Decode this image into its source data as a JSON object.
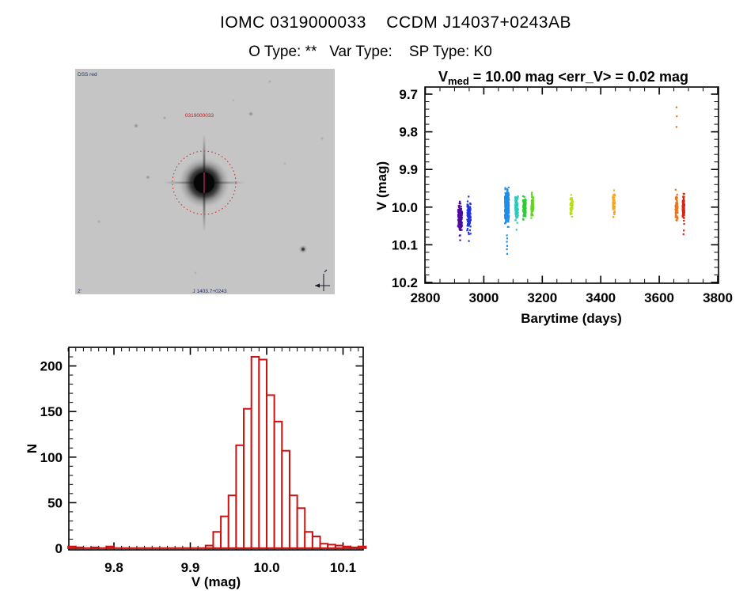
{
  "page": {
    "title": "IOMC 0319000033    CCDM J14037+0243AB",
    "subtitle": "O Type: **   Var Type:    SP Type: K0"
  },
  "finder": {
    "corner_label": "DSS red",
    "source_label": "0319000033",
    "bottom_label": "J 1403.7+0243",
    "scale_label": "2'",
    "circle_color": "#cc3333"
  },
  "chart_data": [
    {
      "id": "lightcurve",
      "type": "scatter",
      "title": {
        "text_main": "V",
        "text_sub": "med",
        "text_rest": " = 10.00 mag <err_V> = 0.02 mag"
      },
      "xlabel": "Barytime (days)",
      "ylabel": "V (mag)",
      "xlim": [
        2800,
        3800
      ],
      "ylim": [
        10.2,
        9.7
      ],
      "y_axis_inverted": true,
      "grid": false,
      "xticks": [
        "2800",
        "3000",
        "3200",
        "3400",
        "3600",
        "3800"
      ],
      "yticks": [
        "9.7",
        "9.8",
        "9.9",
        "10.0",
        "10.1",
        "10.2"
      ],
      "x_minor_step": 50,
      "y_minor_step": 0.02,
      "point_shape": "small-square",
      "clusters": [
        {
          "t": 2919,
          "dt": 7,
          "v": 10.028,
          "sv": 0.03,
          "vmin": 9.976,
          "vmax": 10.082,
          "n": 130,
          "color": "#4A0C9E",
          "extra": [
            [
              2919,
              10.088
            ]
          ]
        },
        {
          "t": 2949,
          "dt": 6,
          "v": 10.025,
          "sv": 0.032,
          "vmin": 9.972,
          "vmax": 10.085,
          "n": 100,
          "color": "#2233D8",
          "extra": [
            [
              2949,
              10.09
            ],
            [
              2948,
              9.972
            ]
          ]
        },
        {
          "t": 3079,
          "dt": 7,
          "v": 10.0,
          "sv": 0.034,
          "vmin": 9.932,
          "vmax": 10.068,
          "n": 240,
          "color": "#1E8EE8",
          "extra": [
            [
              3079,
              10.075
            ],
            [
              3080,
              10.083
            ],
            [
              3079,
              10.092
            ],
            [
              3080,
              10.103
            ],
            [
              3079,
              10.112
            ],
            [
              3080,
              10.124
            ]
          ]
        },
        {
          "t": 3112,
          "dt": 5,
          "v": 10.003,
          "sv": 0.026,
          "vmin": 9.956,
          "vmax": 10.052,
          "n": 70,
          "color": "#2BC9B8",
          "extra": [
            [
              3112,
              10.06
            ]
          ]
        },
        {
          "t": 3139,
          "dt": 5,
          "v": 9.999,
          "sv": 0.025,
          "vmin": 9.952,
          "vmax": 10.046,
          "n": 90,
          "color": "#2ECC35",
          "extra": []
        },
        {
          "t": 3166,
          "dt": 4,
          "v": 10.0,
          "sv": 0.03,
          "vmin": 9.944,
          "vmax": 10.058,
          "n": 55,
          "color": "#63D41F",
          "extra": []
        },
        {
          "t": 3300,
          "dt": 4,
          "v": 10.0,
          "sv": 0.026,
          "vmin": 9.954,
          "vmax": 10.048,
          "n": 50,
          "color": "#B8DC1A",
          "extra": []
        },
        {
          "t": 3445,
          "dt": 4,
          "v": 9.995,
          "sv": 0.03,
          "vmin": 9.94,
          "vmax": 10.052,
          "n": 42,
          "color": "#F0A818",
          "extra": []
        },
        {
          "t": 3659,
          "dt": 4,
          "v": 10.0,
          "sv": 0.03,
          "vmin": 9.94,
          "vmax": 10.056,
          "n": 60,
          "color": "#EE7518",
          "extra": [
            [
              3659,
              9.735
            ],
            [
              3660,
              9.759
            ],
            [
              3659,
              9.787
            ]
          ]
        },
        {
          "t": 3683,
          "dt": 3,
          "v": 10.004,
          "sv": 0.024,
          "vmin": 9.956,
          "vmax": 10.052,
          "n": 110,
          "color": "#D62616",
          "extra": [
            [
              3684,
              10.062
            ],
            [
              3683,
              10.072
            ]
          ]
        }
      ]
    },
    {
      "id": "histogram",
      "type": "histogram",
      "xlabel": "V (mag)",
      "ylabel": "N",
      "xlim": [
        9.739,
        10.127
      ],
      "ylim": [
        0,
        218
      ],
      "grid": false,
      "xticks": [
        "9.8",
        "9.9",
        "10.0",
        "10.1"
      ],
      "yticks": [
        "0",
        "50",
        "100",
        "150",
        "200"
      ],
      "x_minor_step": 0.01,
      "y_minor_step": 10,
      "bin_width": 0.01,
      "color": "#CC1111",
      "bins": [
        [
          9.74,
          2
        ],
        [
          9.75,
          1
        ],
        [
          9.76,
          0
        ],
        [
          9.77,
          1
        ],
        [
          9.78,
          0
        ],
        [
          9.79,
          2
        ],
        [
          9.8,
          0
        ],
        [
          9.81,
          0
        ],
        [
          9.82,
          0
        ],
        [
          9.83,
          0
        ],
        [
          9.84,
          0
        ],
        [
          9.85,
          0
        ],
        [
          9.86,
          0
        ],
        [
          9.87,
          0
        ],
        [
          9.88,
          0
        ],
        [
          9.89,
          0
        ],
        [
          9.9,
          0
        ],
        [
          9.91,
          0
        ],
        [
          9.92,
          3
        ],
        [
          9.93,
          18
        ],
        [
          9.94,
          35
        ],
        [
          9.95,
          58
        ],
        [
          9.96,
          113
        ],
        [
          9.97,
          153
        ],
        [
          9.98,
          210
        ],
        [
          9.99,
          207
        ],
        [
          10.0,
          168
        ],
        [
          10.01,
          139
        ],
        [
          10.02,
          107
        ],
        [
          10.03,
          58
        ],
        [
          10.04,
          44
        ],
        [
          10.05,
          18
        ],
        [
          10.06,
          13
        ],
        [
          10.07,
          5
        ],
        [
          10.08,
          4
        ],
        [
          10.09,
          3
        ],
        [
          10.1,
          2
        ],
        [
          10.11,
          1
        ],
        [
          10.12,
          2
        ]
      ]
    }
  ]
}
